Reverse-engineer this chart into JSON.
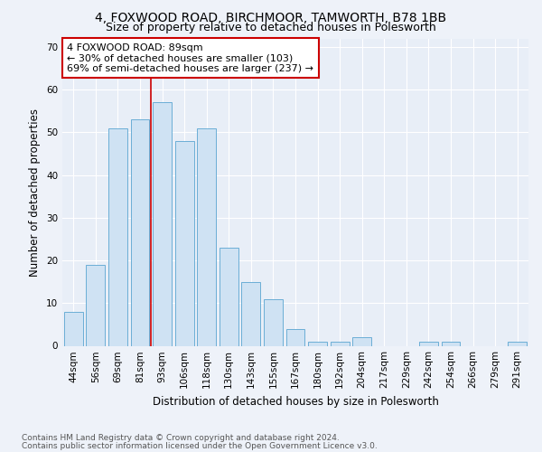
{
  "title1": "4, FOXWOOD ROAD, BIRCHMOOR, TAMWORTH, B78 1BB",
  "title2": "Size of property relative to detached houses in Polesworth",
  "xlabel": "Distribution of detached houses by size in Polesworth",
  "ylabel": "Number of detached properties",
  "categories": [
    "44sqm",
    "56sqm",
    "69sqm",
    "81sqm",
    "93sqm",
    "106sqm",
    "118sqm",
    "130sqm",
    "143sqm",
    "155sqm",
    "167sqm",
    "180sqm",
    "192sqm",
    "204sqm",
    "217sqm",
    "229sqm",
    "242sqm",
    "254sqm",
    "266sqm",
    "279sqm",
    "291sqm"
  ],
  "values": [
    8,
    19,
    51,
    53,
    57,
    48,
    51,
    23,
    15,
    11,
    4,
    1,
    1,
    2,
    0,
    0,
    1,
    1,
    0,
    0,
    1
  ],
  "bar_color": "#cfe2f3",
  "bar_edge_color": "#6baed6",
  "annotation_text": "4 FOXWOOD ROAD: 89sqm\n← 30% of detached houses are smaller (103)\n69% of semi-detached houses are larger (237) →",
  "annotation_box_color": "#ffffff",
  "annotation_box_edge": "#cc0000",
  "vline_color": "#cc0000",
  "vline_x_index": 3.5,
  "ylim": [
    0,
    72
  ],
  "yticks": [
    0,
    10,
    20,
    30,
    40,
    50,
    60,
    70
  ],
  "bg_color": "#eef2f9",
  "plot_bg_color": "#e8eef7",
  "footer1": "Contains HM Land Registry data © Crown copyright and database right 2024.",
  "footer2": "Contains public sector information licensed under the Open Government Licence v3.0.",
  "title1_fontsize": 10,
  "title2_fontsize": 9,
  "xlabel_fontsize": 8.5,
  "ylabel_fontsize": 8.5,
  "tick_fontsize": 7.5,
  "footer_fontsize": 6.5,
  "ann_fontsize": 8
}
